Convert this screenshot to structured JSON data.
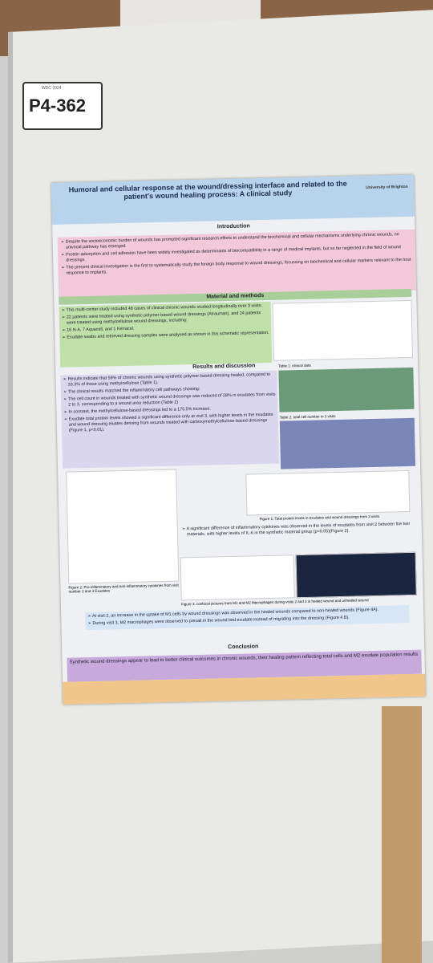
{
  "board_label": "P4-362",
  "board_logo": "WDC 2024",
  "poster": {
    "title": "Humoral and cellular response at the wound/dressing interface and related to the patient's wound healing process: A clinical study",
    "affiliation": "University of Brighton",
    "intro": {
      "heading": "Introduction",
      "bullets": [
        "Despite the socioeconomic burden of wounds has prompted significant research efforts to understand the biochemical and cellular mechanisms underlying chronic wounds, no univocal pathway has emerged.",
        "Protein adsorption and cell adhesion have been widely investigated as determinants of biocompatibility in a range of medical implants, but so far neglected in the field of wound dressings.",
        "The present clinical investigation is the first to systematically study the foreign body response to wound dressings, focussing on biochemical and cellular markers relevant to the host response to implants."
      ]
    },
    "methods": {
      "heading": "Material and methods",
      "bullets": [
        "This multi-center study included 48 cases of clinical chronic wounds studied longitudinally over 3 visits.",
        "22 patients were treated using synthetic polymer-based wound dressings (Atrauman), and 24 patients were treated using methylcellulose wound dressings, including:",
        "16 N-A, 7 Aquacell, and 1 Kerracel.",
        "Exudate swabs and retrieved dressing samples were analysed as shown in this schematic representation."
      ]
    },
    "results": {
      "heading": "Results and discussion",
      "bullets": [
        "Results indicate that 59% of chronic wounds using synthetic polymer-based dressing healed, compared to 33.3% of those using methylcellulose (Table 1).",
        "The clinical results matched the inflammatory cell pathways showing:",
        "The cell count in wounds treated with synthetic wound dressings was reduced of 28% in exudates from visits 2 to 3, corresponding to a wound area reduction (Table 2)",
        "In contrast, the methylcellulose-based dressings led to a 175.5% increase.",
        "Exudate total protein levels showed a significant difference only at visit 3, with higher levels in the exudates and wound dressing eluates deriving from wounds treated with carboxymethylcellulose-based dressings (Figure 1, p<0.01)."
      ],
      "table1_caption": "Table 1: clinical data",
      "table2_caption": "Table 2: total cell number in 3 visits",
      "fig1_caption": "Figure 1: Total protein levels in exudates and wound dressings from 3 visits.",
      "fig2_caption": "Figure 2: Pro-inflammatory and Anti-inflammatory cytokines from visit number 2 and 3 Exudates",
      "fig3_caption": "Figure 3: confocal pictures from M1 and M2 Macrophages during visits 2 and 3 in healed wound and unhealed wound",
      "cytokine_bullet": "A significant difference of inflammatory cytokines was observed in the levels of exudates from visit 2 between the two materials, with higher levels of IL-6 in the synthetic material group (p<0.05)(Figure 2).",
      "macrophage_bullets": [
        "At visit 2, an increase in the uptake of M1 cells by wound dressings was observed in the healed wounds compared to non-healed wounds (Figure 4A).",
        "During visit 3, M2 macrophages were observed to prevail in the wound bed exudate instead of migrating into the dressing (Figure 4 B)."
      ]
    },
    "conclusion": {
      "heading": "Conclusion",
      "text": "Synthetic wound dressings appear to lead to better clinical outcomes in chronic wounds, their healing pattern reflecting total cells and M2 exudate population results"
    }
  }
}
